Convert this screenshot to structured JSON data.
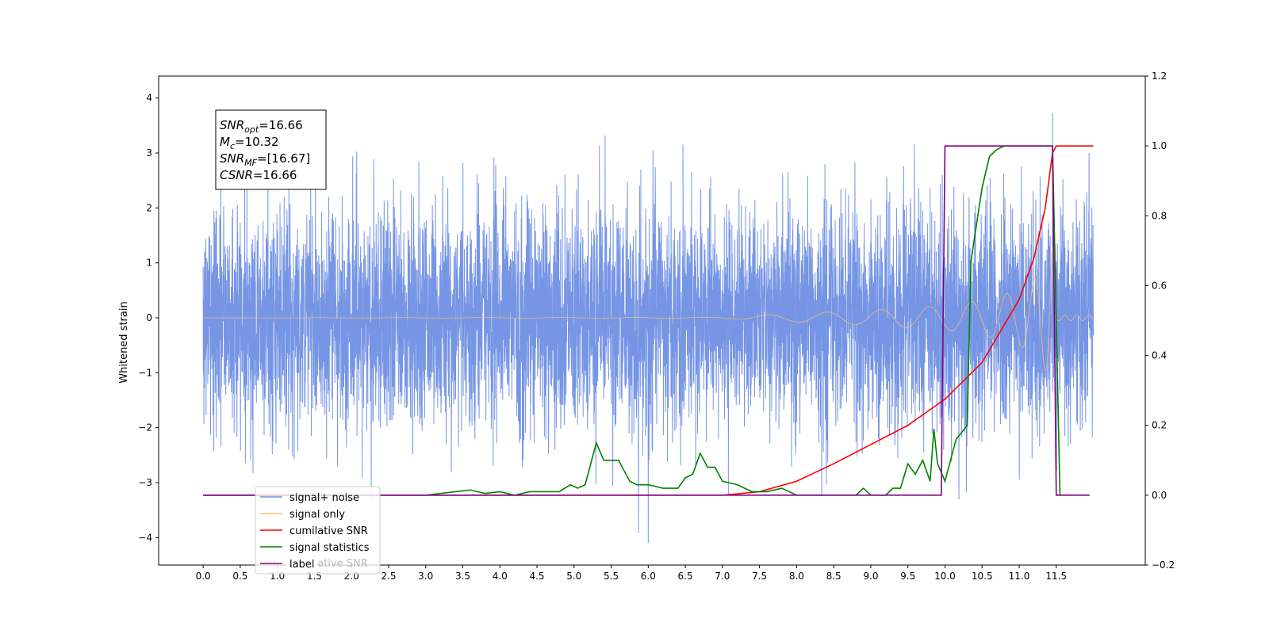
{
  "chart_data": {
    "type": "line",
    "x_ticks": [
      "0.0",
      "0.5",
      "1.0",
      "1.5",
      "2.0",
      "2.5",
      "3.0",
      "3.5",
      "4.0",
      "4.5",
      "5.0",
      "5.5",
      "6.0",
      "6.5",
      "7.0",
      "7.5",
      "8.0",
      "8.5",
      "9.0",
      "9.5",
      "10.0",
      "10.5",
      "11.0",
      "11.5"
    ],
    "xlim": [
      -0.6,
      12.7
    ],
    "ylabel": "Whitened strain",
    "ylim": [
      -4.5,
      4.4
    ],
    "y_ticks": [
      4,
      3,
      2,
      1,
      0,
      -1,
      -2,
      -3,
      -4
    ],
    "y_tick_labels": [
      "4",
      "3",
      "2",
      "1",
      "0",
      "−1",
      "−2",
      "−3",
      "−4"
    ],
    "y2lim": [
      -0.2,
      1.2
    ],
    "y2_ticks": [
      "1.2",
      "1.0",
      "0.8",
      "0.6",
      "0.4",
      "0.2",
      "0.0",
      "−0.2"
    ],
    "y2_tick_values": [
      1.2,
      1.0,
      0.8,
      0.6,
      0.4,
      0.2,
      0.0,
      -0.2
    ],
    "annotation": {
      "lines": [
        {
          "sym": "SNR",
          "sub": "opt",
          "val": "=16.66"
        },
        {
          "sym": "M",
          "sub": "c",
          "val": "=10.32"
        },
        {
          "sym": "SNR",
          "sub": "MF",
          "val": "=[16.67]"
        },
        {
          "sym": "CSNR",
          "sub": "",
          "val": "=16.66"
        }
      ]
    },
    "legend": {
      "position": "lower-left",
      "entries": [
        {
          "label": "signal+ noise",
          "color": "#6f8fe4"
        },
        {
          "label": "signal only",
          "color": "#ffc070"
        },
        {
          "label": "cumilative SNR",
          "color": "#ff0000"
        },
        {
          "label": "signal statistics",
          "color": "#008000"
        },
        {
          "label": "label",
          "color": "#800080"
        }
      ],
      "ghost_text": "cumilative SNR"
    },
    "series": [
      {
        "name": "signal+ noise",
        "axis": "left",
        "color": "#6f8fe4",
        "x_range": [
          0.0,
          12.0
        ],
        "noise_std": 1.0,
        "peak": 3.98
      },
      {
        "name": "signal only",
        "axis": "left",
        "color": "#ffc070",
        "x_range": [
          0.0,
          12.0
        ],
        "envelope": {
          "x": [
            0.0,
            7.0,
            8.0,
            9.0,
            10.0,
            10.5,
            11.0,
            11.3,
            11.45,
            11.48
          ],
          "amp": [
            0.0,
            0.01,
            0.08,
            0.14,
            0.22,
            0.32,
            0.5,
            0.8,
            1.3,
            0.05
          ]
        }
      },
      {
        "name": "cumilative SNR",
        "axis": "right",
        "color": "#ff0000",
        "x": [
          0.0,
          7.0,
          7.5,
          8.0,
          8.5,
          9.0,
          9.5,
          10.0,
          10.5,
          11.0,
          11.2,
          11.35,
          11.45,
          11.5,
          12.0
        ],
        "y": [
          0.0,
          0.0,
          0.01,
          0.04,
          0.09,
          0.145,
          0.2,
          0.275,
          0.38,
          0.56,
          0.68,
          0.82,
          0.98,
          1.0,
          1.0
        ]
      },
      {
        "name": "signal statistics",
        "axis": "right",
        "color": "#008000",
        "x": [
          0.0,
          3.0,
          3.4,
          3.6,
          3.8,
          4.0,
          4.2,
          4.4,
          4.6,
          4.8,
          4.95,
          5.05,
          5.15,
          5.3,
          5.4,
          5.6,
          5.75,
          5.85,
          6.0,
          6.2,
          6.4,
          6.5,
          6.6,
          6.7,
          6.8,
          6.9,
          7.0,
          7.2,
          7.4,
          7.6,
          7.8,
          8.0,
          8.4,
          8.8,
          8.9,
          9.0,
          9.2,
          9.3,
          9.4,
          9.5,
          9.6,
          9.7,
          9.8,
          9.85,
          9.9,
          10.0,
          10.05,
          10.15,
          10.3,
          10.35,
          10.4,
          10.5,
          10.6,
          10.7,
          10.8,
          11.0,
          11.3,
          11.45,
          11.55
        ],
        "y": [
          0.0,
          0.0,
          0.01,
          0.015,
          0.005,
          0.01,
          0.0,
          0.01,
          0.01,
          0.01,
          0.03,
          0.02,
          0.03,
          0.15,
          0.1,
          0.1,
          0.04,
          0.03,
          0.03,
          0.02,
          0.02,
          0.05,
          0.06,
          0.12,
          0.08,
          0.08,
          0.04,
          0.03,
          0.01,
          0.01,
          0.02,
          0.0,
          0.0,
          0.0,
          0.02,
          0.0,
          0.0,
          0.02,
          0.02,
          0.09,
          0.06,
          0.1,
          0.04,
          0.19,
          0.09,
          0.04,
          0.08,
          0.16,
          0.2,
          0.67,
          0.74,
          0.88,
          0.97,
          0.99,
          1.0,
          1.0,
          1.0,
          1.0,
          0.0
        ]
      },
      {
        "name": "label",
        "axis": "right",
        "color": "#800080",
        "x": [
          0.0,
          9.95,
          10.0,
          11.45,
          11.5,
          11.95
        ],
        "y": [
          0.0,
          0.0,
          1.0,
          1.0,
          0.0,
          0.0
        ]
      }
    ]
  }
}
